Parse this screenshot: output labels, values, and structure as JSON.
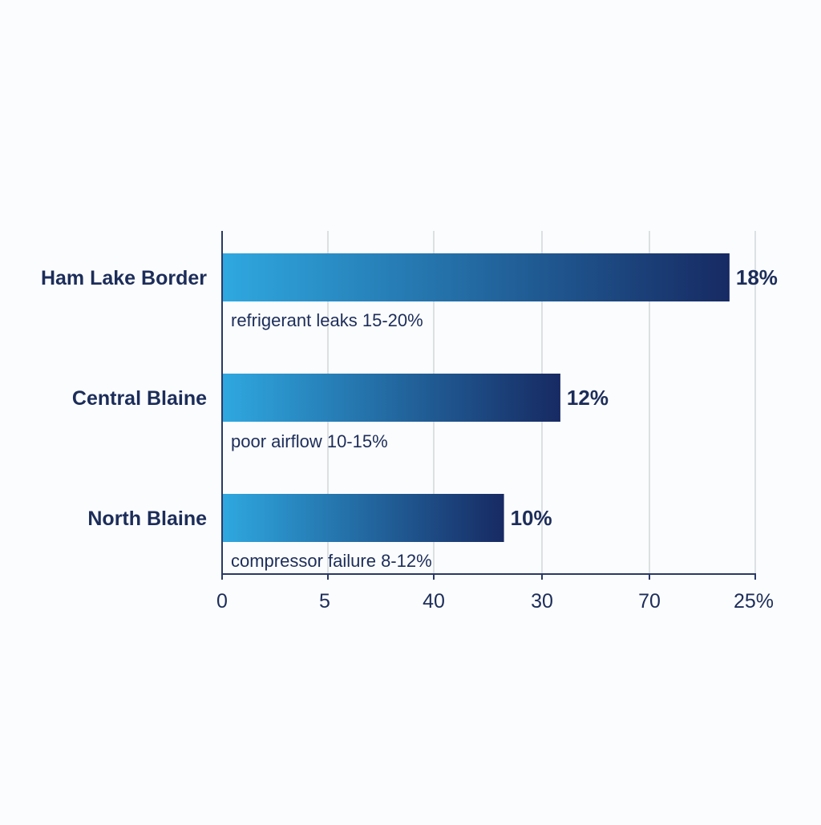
{
  "colors": {
    "text_dark": "#1c2d5a",
    "bar_light": "#2fa8e0",
    "bar_dark": "#172a63",
    "grid": "#d3d6da",
    "axis": "#2a3a66"
  },
  "chart_data": {
    "type": "bar",
    "orientation": "horizontal",
    "title": "",
    "xlabel": "",
    "ylabel": "",
    "grid": true,
    "legend": "none",
    "xlim": [
      0,
      25
    ],
    "x_tick_labels": [
      "0",
      "5",
      "40",
      "30",
      "70",
      "25%"
    ],
    "categories": [
      "Ham Lake Border",
      "Central Blaine",
      "North Blaine"
    ],
    "values": [
      18,
      12,
      10
    ],
    "value_labels": [
      "18%",
      "12%",
      "10%"
    ],
    "annotations": [
      "refrigerant leaks 15-20%",
      "poor airflow 10-15%",
      "compressor failure 8-12%"
    ]
  }
}
